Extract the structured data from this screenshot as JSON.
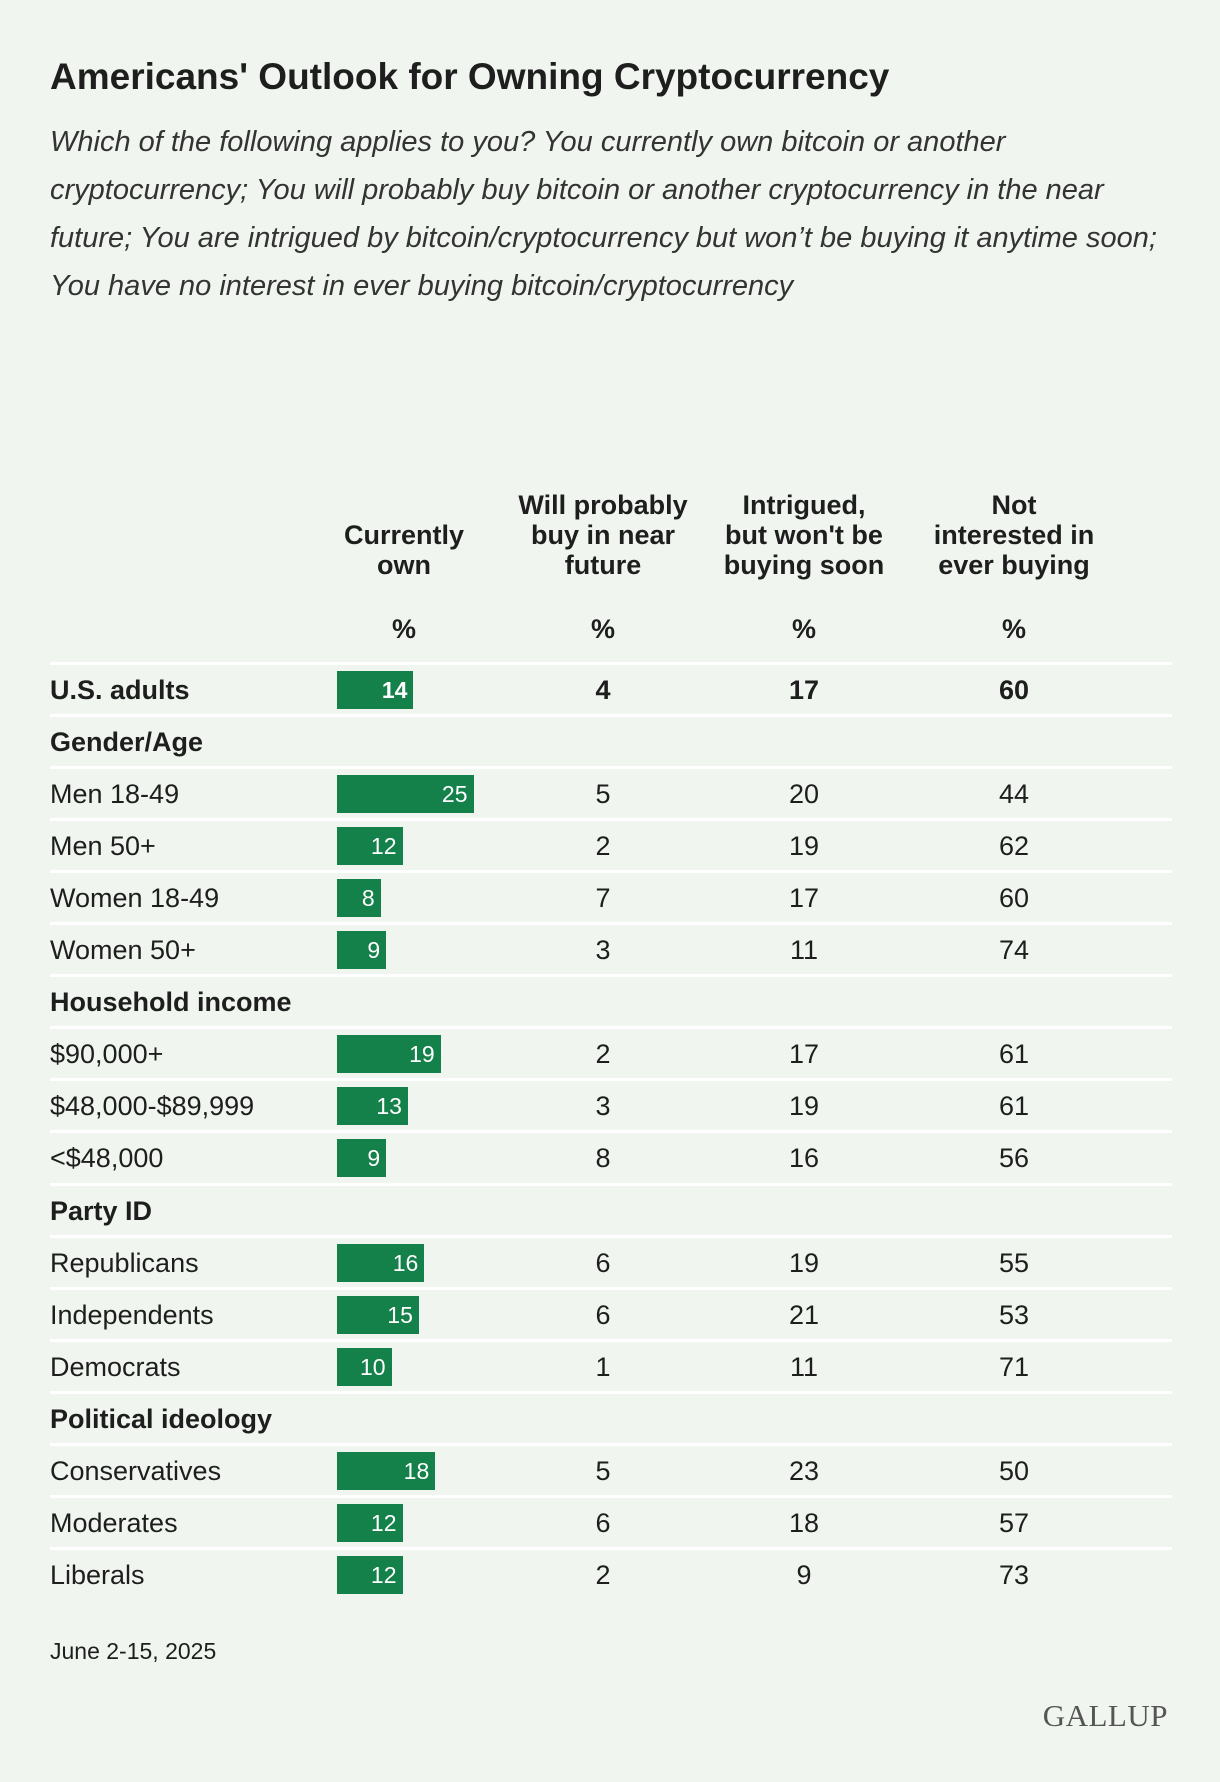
{
  "title": "Americans' Outlook for Owning Cryptocurrency",
  "subtitle": "Which of the following applies to you? You currently own bitcoin or another cryptocurrency; You will probably buy bitcoin or another cryptocurrency in the near future; You are intrigued by bitcoin/cryptocurrency but won’t be buying it anytime soon; You have no interest in ever buying bitcoin/cryptocurrency",
  "table": {
    "columns": [
      "Currently own",
      "Will probably buy in near future",
      "Intrigued, but won't be buying soon",
      "Not interested in ever buying"
    ],
    "units": [
      "%",
      "%",
      "%",
      "%"
    ],
    "rows": [
      {
        "label": "U.S. adults",
        "values": [
          14,
          4,
          17,
          60
        ]
      },
      {
        "label": "Gender/Age"
      },
      {
        "label": "Men 18-49",
        "values": [
          25,
          5,
          20,
          44
        ]
      },
      {
        "label": "Men 50+",
        "values": [
          12,
          2,
          19,
          62
        ]
      },
      {
        "label": "Women 18-49",
        "values": [
          8,
          7,
          17,
          60
        ]
      },
      {
        "label": "Women 50+",
        "values": [
          9,
          3,
          11,
          74
        ]
      },
      {
        "label": "Household income"
      },
      {
        "label": "$90,000+",
        "values": [
          19,
          2,
          17,
          61
        ]
      },
      {
        "label": "$48,000-$89,999",
        "values": [
          13,
          3,
          19,
          61
        ]
      },
      {
        "label": "<$48,000",
        "values": [
          9,
          8,
          16,
          56
        ]
      },
      {
        "label": "Party ID"
      },
      {
        "label": "Republicans",
        "values": [
          16,
          6,
          19,
          55
        ]
      },
      {
        "label": "Independents",
        "values": [
          15,
          6,
          21,
          53
        ]
      },
      {
        "label": "Democrats",
        "values": [
          10,
          1,
          11,
          71
        ]
      },
      {
        "label": "Political ideology"
      },
      {
        "label": "Conservatives",
        "values": [
          18,
          5,
          23,
          50
        ]
      },
      {
        "label": "Moderates",
        "values": [
          12,
          6,
          18,
          57
        ]
      },
      {
        "label": "Liberals",
        "values": [
          12,
          2,
          9,
          73
        ]
      }
    ]
  },
  "note": "June 2-15, 2025",
  "source": "GALLUP"
}
